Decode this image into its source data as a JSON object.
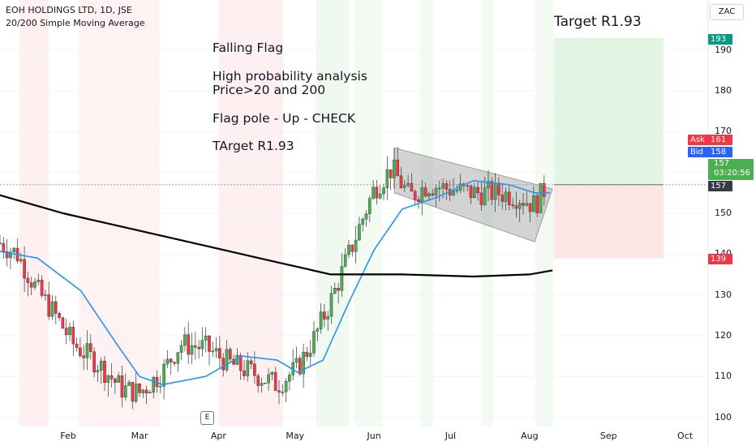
{
  "header": {
    "symbol_line": "EOH HOLDINGS LTD, 1D, JSE",
    "indicator_line": "20/200 Simple Moving Average"
  },
  "currency": "ZAC",
  "annotations": {
    "line1": "Falling Flag",
    "line2": "High probability analysis",
    "line3": "Price>20 and 200",
    "line4": "Flag pole - Up - CHECK",
    "line5": "TArget R1.93",
    "target_label": "Target R1.93"
  },
  "price_labels": {
    "target": "193",
    "ask_label": "Ask",
    "ask": "161",
    "bid_label": "Bid",
    "bid": "158",
    "last": "157",
    "countdown": "03:20:56",
    "last_line": "157",
    "stop": "139"
  },
  "event_badge": "E",
  "colors": {
    "up": "#4caf50",
    "down": "#f23645",
    "sma20": "#2196f3",
    "sma200": "#000000",
    "ask": "#f23645",
    "bid": "#2962ff",
    "target_box": "#e3f5e3",
    "stop_box": "#fde6e6"
  },
  "chart_data": {
    "type": "candlestick",
    "title": "EOH HOLDINGS LTD, 1D, JSE",
    "x_ticks": [
      "Feb",
      "Mar",
      "Apr",
      "May",
      "Jun",
      "Jul",
      "Aug",
      "Sep",
      "Oct"
    ],
    "y_ticks": [
      100,
      110,
      120,
      130,
      140,
      150,
      160,
      170,
      180,
      190
    ],
    "ylim": [
      99,
      198
    ],
    "series": [
      {
        "name": "Price",
        "type": "candlestick",
        "trend_points": [
          [
            "2023-01-02",
            144
          ],
          [
            "2023-01-12",
            140
          ],
          [
            "2023-01-20",
            131
          ],
          [
            "2023-01-27",
            125
          ],
          [
            "2023-02-03",
            118
          ],
          [
            "2023-02-13",
            113
          ],
          [
            "2023-02-22",
            107
          ],
          [
            "2023-03-01",
            106
          ],
          [
            "2023-03-10",
            111
          ],
          [
            "2023-03-17",
            118
          ],
          [
            "2023-03-27",
            117
          ],
          [
            "2023-04-06",
            113
          ],
          [
            "2023-04-14",
            111
          ],
          [
            "2023-04-24",
            108
          ],
          [
            "2023-05-02",
            112
          ],
          [
            "2023-05-09",
            120
          ],
          [
            "2023-05-16",
            130
          ],
          [
            "2023-05-24",
            143
          ],
          [
            "2023-06-01",
            156
          ],
          [
            "2023-06-08",
            161
          ],
          [
            "2023-06-15",
            154
          ],
          [
            "2023-06-22",
            157
          ],
          [
            "2023-06-30",
            156
          ],
          [
            "2023-07-10",
            155
          ],
          [
            "2023-07-20",
            155
          ],
          [
            "2023-07-28",
            154
          ],
          [
            "2023-08-03",
            152
          ],
          [
            "2023-08-08",
            157
          ]
        ]
      },
      {
        "name": "SMA 20",
        "values": [
          [
            "2023-01-02",
            141
          ],
          [
            "2023-01-20",
            139
          ],
          [
            "2023-02-06",
            131
          ],
          [
            "2023-02-20",
            118
          ],
          [
            "2023-03-01",
            110
          ],
          [
            "2023-03-10",
            108
          ],
          [
            "2023-03-27",
            110
          ],
          [
            "2023-04-10",
            115
          ],
          [
            "2023-04-24",
            114
          ],
          [
            "2023-05-02",
            111
          ],
          [
            "2023-05-12",
            114
          ],
          [
            "2023-05-22",
            128
          ],
          [
            "2023-06-01",
            141
          ],
          [
            "2023-06-12",
            151
          ],
          [
            "2023-06-26",
            154
          ],
          [
            "2023-07-10",
            158
          ],
          [
            "2023-07-24",
            157
          ],
          [
            "2023-08-03",
            155
          ],
          [
            "2023-08-09",
            155
          ]
        ]
      },
      {
        "name": "SMA 200",
        "values": [
          [
            "2023-01-02",
            155
          ],
          [
            "2023-01-30",
            150
          ],
          [
            "2023-02-27",
            146
          ],
          [
            "2023-03-27",
            142
          ],
          [
            "2023-04-24",
            138
          ],
          [
            "2023-05-15",
            135
          ],
          [
            "2023-06-12",
            135
          ],
          [
            "2023-07-10",
            134.5
          ],
          [
            "2023-08-01",
            135
          ],
          [
            "2023-08-10",
            136
          ]
        ]
      }
    ],
    "horizontal_line": 157,
    "long_position": {
      "entry": 157,
      "target": 193,
      "stop": 139
    },
    "flag_channel": {
      "upper": [
        [
          "2023-06-09",
          166
        ],
        [
          "2023-08-10",
          156
        ]
      ],
      "lower": [
        [
          "2023-06-09",
          155
        ],
        [
          "2023-08-03",
          143
        ]
      ]
    }
  }
}
